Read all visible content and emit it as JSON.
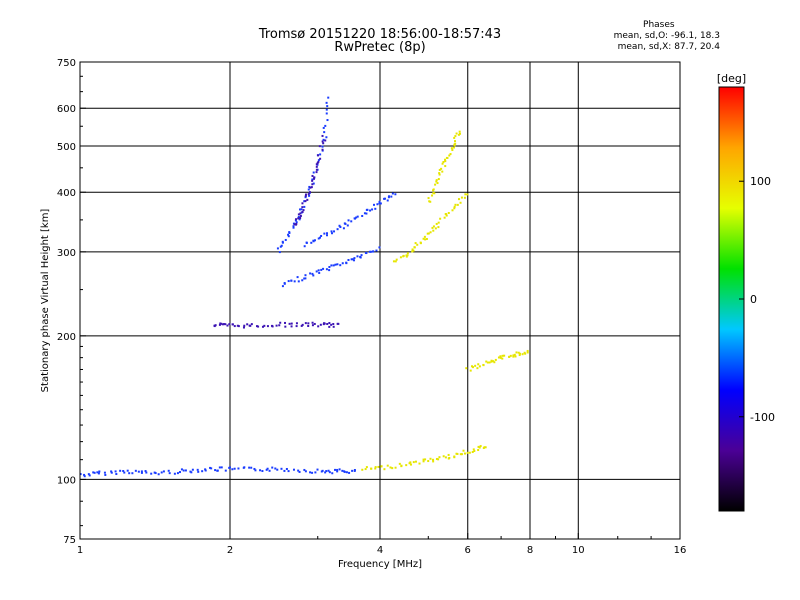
{
  "title": {
    "line1": "Tromsø 20151220 18:56:00-18:57:43",
    "line2": "RwPretec (8p)"
  },
  "phases": {
    "title": "Phases",
    "line1": "mean, sd,O: -96.1, 18.3",
    "line2": "mean, sd,X:  87.7, 20.4"
  },
  "chart_data": {
    "type": "scatter",
    "xlabel": "Frequency [MHz]",
    "ylabel": "Stationary phase Virtual Height [km]",
    "x_scale": "log",
    "y_scale": "log",
    "xlim": [
      1,
      16
    ],
    "ylim": [
      75,
      750
    ],
    "x_ticks": [
      1,
      2,
      4,
      6,
      8,
      10,
      16
    ],
    "y_ticks": [
      75,
      100,
      200,
      300,
      400,
      500,
      600,
      750
    ],
    "grid": true,
    "colorbar": {
      "label": "[deg]",
      "range": [
        -180,
        180
      ],
      "ticks": [
        100,
        0,
        -100
      ],
      "colors": [
        "#000000",
        "#4b0096",
        "#0000ff",
        "#00c8ff",
        "#00e100",
        "#e6ff00",
        "#ffa500",
        "#ff0000"
      ]
    },
    "series": [
      {
        "color": "#1a3cff",
        "description_traces": [
          {
            "x": [
              1.0,
              1.1,
              1.25,
              1.4,
              1.6,
              1.8,
              2.0,
              2.3,
              2.6,
              3.0,
              3.3,
              3.6
            ],
            "y": [
              102,
              103,
              104,
              103,
              104,
              105,
              105,
              105,
              105,
              104,
              104,
              104
            ]
          },
          {
            "x": [
              2.5,
              2.65,
              2.8,
              2.95,
              3.1,
              3.15
            ],
            "y": [
              300,
              330,
              370,
              430,
              520,
              640
            ]
          },
          {
            "x": [
              2.55,
              2.8,
              3.1,
              3.4,
              3.7,
              4.0
            ],
            "y": [
              255,
              265,
              275,
              285,
              295,
              305
            ]
          },
          {
            "x": [
              2.8,
              3.1,
              3.4,
              3.7,
              4.0,
              4.3
            ],
            "y": [
              310,
              325,
              340,
              360,
              380,
              400
            ]
          }
        ]
      },
      {
        "color": "#3c14b4",
        "description_traces": [
          {
            "x": [
              1.85,
              2.0,
              2.2,
              2.5,
              2.8,
              3.1,
              3.3
            ],
            "y": [
              211,
              210,
              210,
              211,
              211,
              211,
              210
            ]
          },
          {
            "x": [
              2.7,
              2.8,
              2.9,
              3.0,
              3.1
            ],
            "y": [
              340,
              370,
              410,
              460,
              530
            ]
          }
        ]
      },
      {
        "color": "#e6e600",
        "description_traces": [
          {
            "x": [
              3.7,
              4.1,
              4.6,
              5.1,
              5.6,
              6.1,
              6.6
            ],
            "y": [
              105,
              106,
              108,
              110,
              112,
              115,
              118
            ]
          },
          {
            "x": [
              4.3,
              4.6,
              4.9,
              5.2,
              5.6,
              6.0
            ],
            "y": [
              285,
              300,
              320,
              340,
              370,
              400
            ]
          },
          {
            "x": [
              5.0,
              5.2,
              5.4,
              5.6,
              5.8
            ],
            "y": [
              380,
              420,
              460,
              500,
              540
            ]
          },
          {
            "x": [
              6.0,
              6.5,
              7.0,
              7.5,
              8.0
            ],
            "y": [
              170,
              175,
              180,
              183,
              185
            ]
          }
        ]
      }
    ]
  }
}
